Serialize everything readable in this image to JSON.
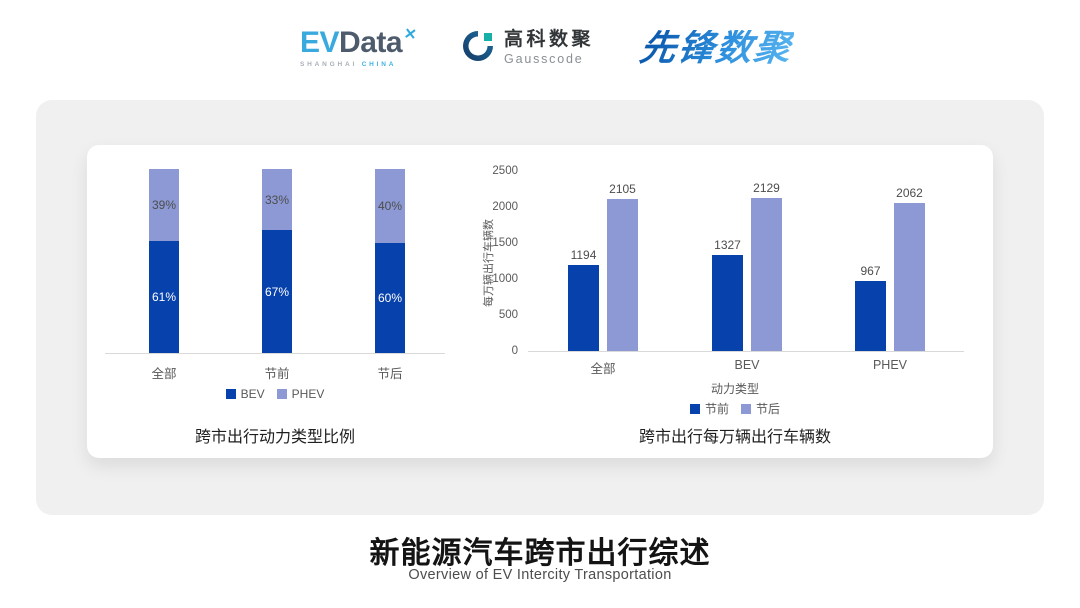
{
  "page": {
    "title": "新能源汽车跨市出行综述",
    "subtitle": "Overview of EV Intercity Transportation"
  },
  "header": {
    "evdata": {
      "ev": "EV",
      "data": "Data",
      "mark": "✕",
      "sub_left": "SHANGHAI",
      "sub_right": "CHINA"
    },
    "gausscode": {
      "cn": "高科数聚",
      "en": "Gausscode"
    },
    "pioneer": {
      "text": "先锋数聚"
    }
  },
  "colors": {
    "series_dark": "#0741ab",
    "series_light": "#8c99d4",
    "axis_text": "#595959",
    "card_bg": "#f0f0f0",
    "panel_bg": "#ffffff"
  },
  "chart_data": [
    {
      "type": "bar",
      "subtype": "stacked-percent",
      "title": "跨市出行动力类型比例",
      "categories": [
        "全部",
        "节前",
        "节后"
      ],
      "series": [
        {
          "name": "BEV",
          "values": [
            61,
            67,
            60
          ],
          "color": "#0741ab",
          "label_color": "#ffffff"
        },
        {
          "name": "PHEV",
          "values": [
            39,
            33,
            40
          ],
          "color": "#8c99d4",
          "label_color": "#4d4d4d"
        }
      ],
      "value_suffix": "%",
      "ylim": [
        0,
        100
      ],
      "legend_position": "bottom",
      "grid": false
    },
    {
      "type": "bar",
      "subtype": "grouped",
      "title": "跨市出行每万辆出行车辆数",
      "xlabel": "动力类型",
      "ylabel": "每万辆出行车辆数",
      "categories": [
        "全部",
        "BEV",
        "PHEV"
      ],
      "series": [
        {
          "name": "节前",
          "values": [
            1194,
            1327,
            967
          ],
          "color": "#0741ab"
        },
        {
          "name": "节后",
          "values": [
            2105,
            2129,
            2062
          ],
          "color": "#8c99d4"
        }
      ],
      "ylim": [
        0,
        2500
      ],
      "yticks": [
        0,
        500,
        1000,
        1500,
        2000,
        2500
      ],
      "legend_position": "bottom",
      "grid": false
    }
  ]
}
